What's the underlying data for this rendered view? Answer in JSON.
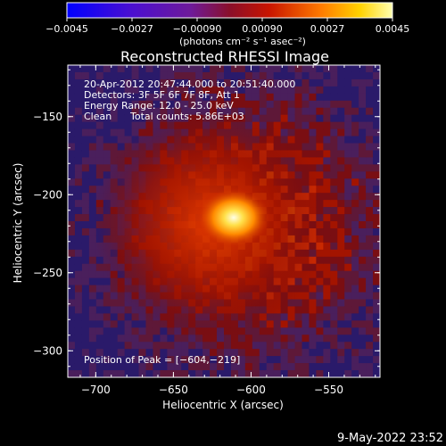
{
  "colorbar": {
    "ticks": [
      "−0.0045",
      "−0.0027",
      "−0.00090",
      "0.00090",
      "0.0027",
      "0.0045"
    ],
    "unit_label": "(photons cm⁻² s⁻¹ asec⁻²)",
    "range": [
      -0.0045,
      0.0045
    ]
  },
  "chart_data": {
    "type": "heatmap",
    "title": "Reconstructed RHESSI Image",
    "xlabel": "Heliocentric X (arcsec)",
    "ylabel": "Heliocentric Y (arcsec)",
    "xlim": [
      -718,
      -517
    ],
    "ylim": [
      -317,
      -117
    ],
    "xticks": [
      -700,
      -650,
      -600,
      -550
    ],
    "yticks": [
      -150,
      -200,
      -250,
      -300
    ],
    "xtick_labels": [
      "−700",
      "−650",
      "−600",
      "−550"
    ],
    "ytick_labels": [
      "−150",
      "−200",
      "−250",
      "−300"
    ],
    "peak": {
      "x": -604,
      "y": -219
    },
    "annotations": {
      "time_range": "20-Apr-2012 20:47:44.000 to 20:51:40.000",
      "detectors": "Detectors: 3F 5F 6F 7F 8F, Att 1",
      "energy": "Energy Range: 12.0 - 25.0 keV",
      "clean_label": "Clean",
      "total_counts": "Total counts: 5.86E+03",
      "peak_label": "Position of Peak = [−604,−219]"
    },
    "colormap": [
      "#0000ff",
      "#6e00b8",
      "#7a0e00",
      "#ff6400",
      "#ffff80",
      "#ffffff"
    ]
  },
  "footer": {
    "date": "9-May-2022 23:52"
  }
}
